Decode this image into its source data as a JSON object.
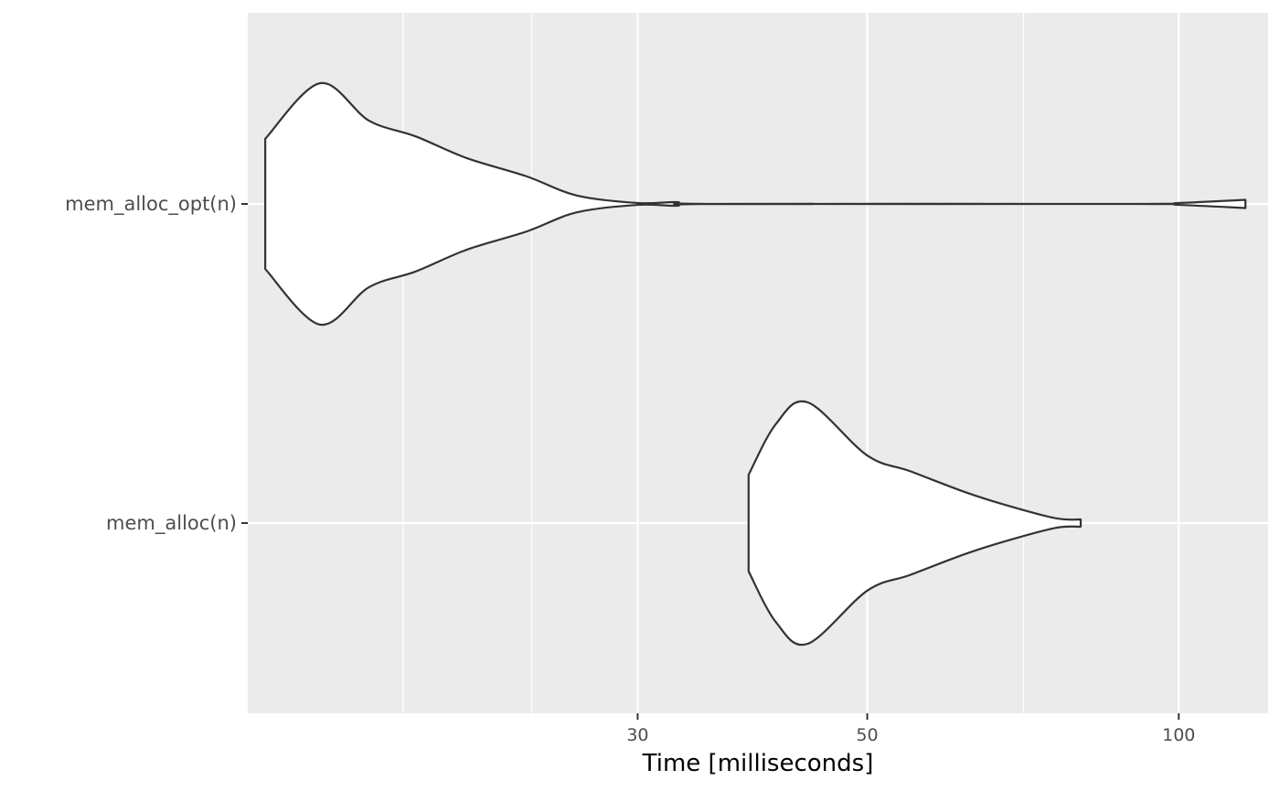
{
  "chart_data": {
    "type": "violin",
    "orientation": "horizontal",
    "title": "",
    "xlabel": "Time [milliseconds]",
    "ylabel": "",
    "x_scale": "log10",
    "x_range_ms": [
      12.6,
      122
    ],
    "x_ticks": [
      30,
      50,
      100
    ],
    "x_tick_labels": [
      "30",
      "50",
      "100"
    ],
    "x_minor_gridlines_ms": [
      17.8,
      23.7,
      70.8
    ],
    "grid": true,
    "categories": [
      "mem_alloc_opt(n)",
      "mem_alloc(n)"
    ],
    "series": [
      {
        "name": "mem_alloc_opt(n)",
        "min": 13.1,
        "max": 116,
        "profile": [
          [
            13.1,
            0.54
          ],
          [
            14.8,
            1.0
          ],
          [
            16.5,
            0.69
          ],
          [
            18.3,
            0.56
          ],
          [
            20.5,
            0.38
          ],
          [
            23.4,
            0.23
          ],
          [
            26.2,
            0.07
          ],
          [
            30.0,
            0.008
          ],
          [
            32.7,
            0.015
          ],
          [
            35.9,
            0.0
          ],
          [
            90.0,
            0.0
          ],
          [
            100.0,
            0.008
          ],
          [
            116,
            0.034
          ]
        ]
      },
      {
        "name": "mem_alloc(n)",
        "min": 38.4,
        "max": 80.4,
        "profile": [
          [
            38.4,
            0.4
          ],
          [
            40.8,
            0.82
          ],
          [
            43.8,
            1.0
          ],
          [
            50.0,
            0.56
          ],
          [
            55.0,
            0.43
          ],
          [
            62.0,
            0.26
          ],
          [
            68.0,
            0.15
          ],
          [
            76.0,
            0.04
          ],
          [
            80.4,
            0.03
          ]
        ]
      }
    ]
  }
}
